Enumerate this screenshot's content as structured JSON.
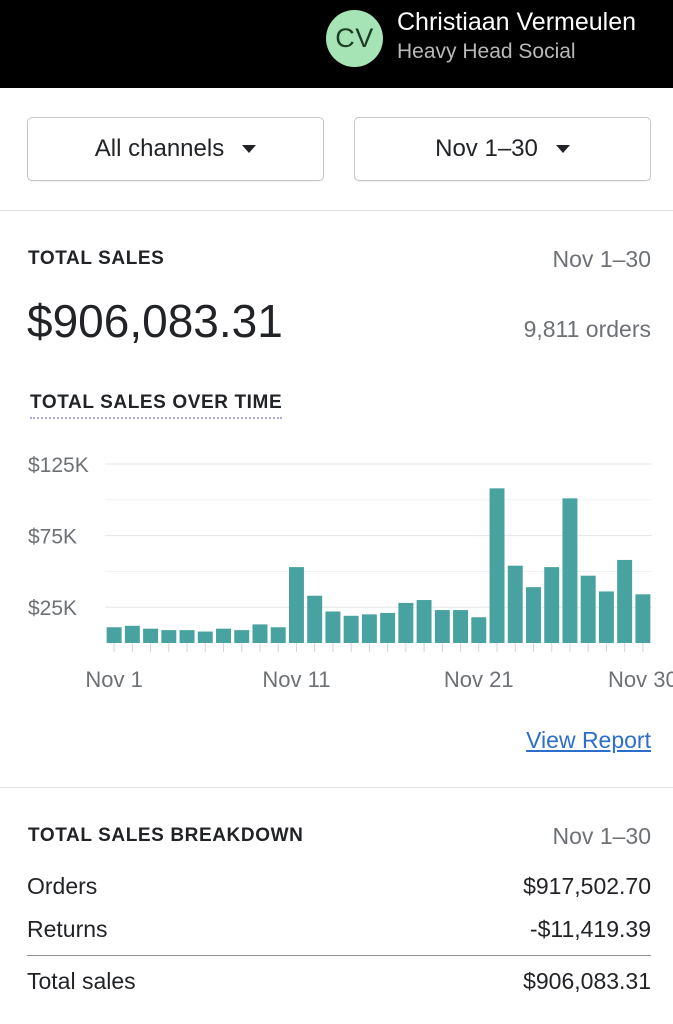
{
  "header": {
    "avatar_initials": "CV",
    "avatar_color": "#a6e3b5",
    "user_name": "Christiaan Vermeulen",
    "store_name": "Heavy Head Social"
  },
  "filters": {
    "channel": "All channels",
    "date_range": "Nov 1–30",
    "caret_icon": "caret-down-icon"
  },
  "total_sales": {
    "title": "TOTAL SALES",
    "period": "Nov 1–30",
    "amount": "$906,083.31",
    "orders": "9,811 orders"
  },
  "chart_data": {
    "type": "bar",
    "title": "TOTAL SALES OVER TIME",
    "color": "#47a2a0",
    "categories": [
      "Nov 1",
      "Nov 2",
      "Nov 3",
      "Nov 4",
      "Nov 5",
      "Nov 6",
      "Nov 7",
      "Nov 8",
      "Nov 9",
      "Nov 10",
      "Nov 11",
      "Nov 12",
      "Nov 13",
      "Nov 14",
      "Nov 15",
      "Nov 16",
      "Nov 17",
      "Nov 18",
      "Nov 19",
      "Nov 20",
      "Nov 21",
      "Nov 22",
      "Nov 23",
      "Nov 24",
      "Nov 25",
      "Nov 26",
      "Nov 27",
      "Nov 28",
      "Nov 29",
      "Nov 30"
    ],
    "values": [
      11000,
      12000,
      10000,
      9000,
      9000,
      8000,
      10000,
      9000,
      13000,
      11000,
      53000,
      33000,
      22000,
      19000,
      20000,
      21000,
      28000,
      30000,
      23000,
      23000,
      18000,
      108000,
      54000,
      39000,
      53000,
      101000,
      47000,
      36000,
      58000,
      34000
    ],
    "y_ticks": [
      {
        "value": 25000,
        "label": "$25K"
      },
      {
        "value": 75000,
        "label": "$75K"
      },
      {
        "value": 125000,
        "label": "$125K"
      }
    ],
    "x_tick_labels": [
      {
        "index": 0,
        "label": "Nov 1"
      },
      {
        "index": 10,
        "label": "Nov 11"
      },
      {
        "index": 20,
        "label": "Nov 21"
      },
      {
        "index": 29,
        "label": "Nov 30"
      }
    ],
    "ylim": [
      0,
      125000
    ],
    "grid": true
  },
  "view_report": "View Report",
  "breakdown": {
    "title": "TOTAL SALES BREAKDOWN",
    "period": "Nov 1–30",
    "rows": [
      {
        "label": "Orders",
        "value": "$917,502.70"
      },
      {
        "label": "Returns",
        "value": "-$11,419.39"
      }
    ],
    "total": {
      "label": "Total sales",
      "value": "$906,083.31"
    }
  }
}
